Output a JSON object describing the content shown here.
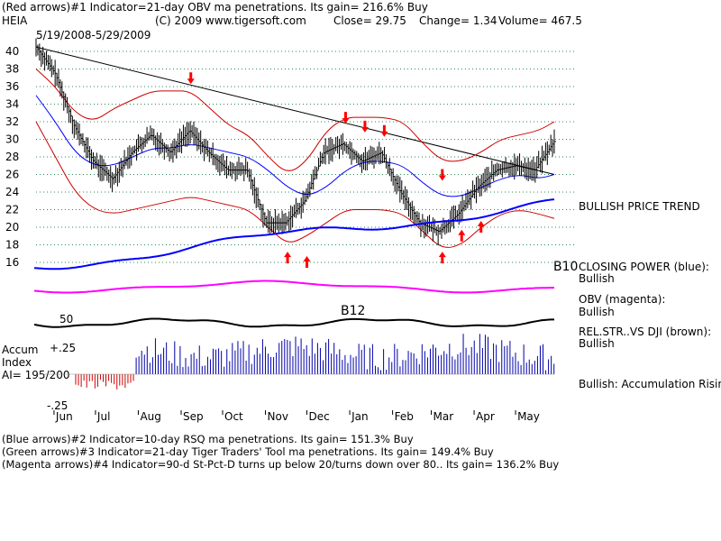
{
  "header": {
    "line1": "(Red arrows)#1 Indicator=21-day OBV ma penetrations. Its gain= 216.6% Buy",
    "symbol": "HEIA",
    "copyright": "(C) 2009 www.tigersoft.com",
    "close": "Close=  29.75",
    "change": "Change= 1.34",
    "volume": "Volume= 467.5",
    "date_range": "5/19/2008-5/29/2009"
  },
  "footer": {
    "line1": "(Blue arrows)#2 Indicator=10-day RSQ ma penetrations. Its gain= 151.3% Buy",
    "line2": "(Green arrows)#3 Indicator=21-day Tiger Traders' Tool ma penetrations. Its gain= 149.4% Buy",
    "line3": "(Magenta arrows)#4 Indicator=90-d St-Pct-D turns up below 20/turns down over 80.. Its gain= 136.2% Buy"
  },
  "right_panel": {
    "trend": "BULLISH PRICE TREND",
    "closing_power_label": "CLOSING POWER (blue):",
    "closing_power_value": "Bullish",
    "obv_label": "OBV (magenta):",
    "obv_value": "Bullish",
    "relstr_label": "REL.STR..VS DJI (brown):",
    "relstr_value": "Bullish",
    "accum_summary": "Bullish: Accumulation Rising"
  },
  "accum_panel": {
    "title_line1": "Accum",
    "title_line2": "Index",
    "ai": "AI= 195/200",
    "level_high": "+.25",
    "level_low": "-.25",
    "level_50": "50"
  },
  "signals": {
    "b12": "B12",
    "b10": "B10"
  },
  "chart_data": {
    "type": "line",
    "title": "",
    "x_tick_labels": [
      "Jun",
      "Jul",
      "Aug",
      "Sep",
      "Oct",
      "Nov",
      "Dec",
      "Jan",
      "Feb",
      "Mar",
      "Apr",
      "May"
    ],
    "y_tick_labels": [
      "40",
      "38",
      "36",
      "34",
      "32",
      "30",
      "28",
      "26",
      "24",
      "22",
      "20",
      "18",
      "16"
    ],
    "ylim": [
      16,
      40
    ],
    "grid": "horizontal dotted",
    "x": [
      "2008-05-19",
      "2008-06-02",
      "2008-06-16",
      "2008-06-30",
      "2008-07-14",
      "2008-07-28",
      "2008-08-11",
      "2008-08-25",
      "2008-09-08",
      "2008-09-22",
      "2008-10-06",
      "2008-10-20",
      "2008-11-03",
      "2008-11-17",
      "2008-12-01",
      "2008-12-15",
      "2008-12-29",
      "2009-01-12",
      "2009-01-26",
      "2009-02-09",
      "2009-02-23",
      "2009-03-09",
      "2009-03-23",
      "2009-04-06",
      "2009-04-20",
      "2009-05-04",
      "2009-05-18",
      "2009-05-29"
    ],
    "series": [
      {
        "name": "",
        "color": "#000000",
        "values": [
          40.5,
          37.5,
          31.5,
          27.5,
          25.5,
          28.5,
          30.5,
          28.5,
          31,
          28.5,
          26.5,
          26.5,
          20.5,
          20.5,
          23,
          28.5,
          29.5,
          27.5,
          28.5,
          24,
          20.5,
          19.5,
          21.5,
          24.5,
          26.5,
          27,
          26.5,
          29.75
        ]
      },
      {
        "name": "",
        "color": "#0000ff",
        "values": [
          35,
          32,
          28.5,
          27,
          27,
          28,
          29,
          29,
          29.5,
          29,
          28.5,
          28,
          26.5,
          24.5,
          23.5,
          24.5,
          26.5,
          27.5,
          27.5,
          27,
          25,
          23.5,
          23.5,
          24.5,
          25.5,
          26,
          25.5,
          26
        ]
      },
      {
        "name": "",
        "color": "#cc0000",
        "values": [
          38,
          36,
          33,
          32,
          33.5,
          34.5,
          35.5,
          35.5,
          35.5,
          33.5,
          31.5,
          30.5,
          28,
          26,
          27.5,
          31,
          32.5,
          32.5,
          32.5,
          32,
          29.5,
          27.5,
          27.5,
          28.5,
          30,
          30.5,
          31,
          32
        ]
      },
      {
        "name": "",
        "color": "#cc0000",
        "values": [
          32,
          28,
          24,
          22,
          21.5,
          22,
          22.5,
          23,
          23.5,
          23,
          22.5,
          22,
          20,
          18,
          19,
          20.5,
          22,
          22,
          22,
          21.5,
          19.5,
          17.5,
          18,
          20,
          21.5,
          22,
          21.5,
          21
        ]
      }
    ],
    "trendline": {
      "from": [
        "2008-05-19",
        40.5
      ],
      "to": [
        "2009-05-29",
        26
      ]
    },
    "arrows": {
      "red_down": [
        [
          "2008-09-08",
          37
        ],
        [
          "2008-12-29",
          32.5
        ],
        [
          "2009-01-12",
          31.5
        ],
        [
          "2009-01-26",
          31
        ],
        [
          "2009-03-09",
          26
        ]
      ],
      "red_up": [
        [
          "2008-11-17",
          16.5
        ],
        [
          "2008-12-01",
          16
        ],
        [
          "2009-03-09",
          16.5
        ],
        [
          "2009-03-23",
          19
        ],
        [
          "2009-04-06",
          20
        ]
      ]
    }
  }
}
